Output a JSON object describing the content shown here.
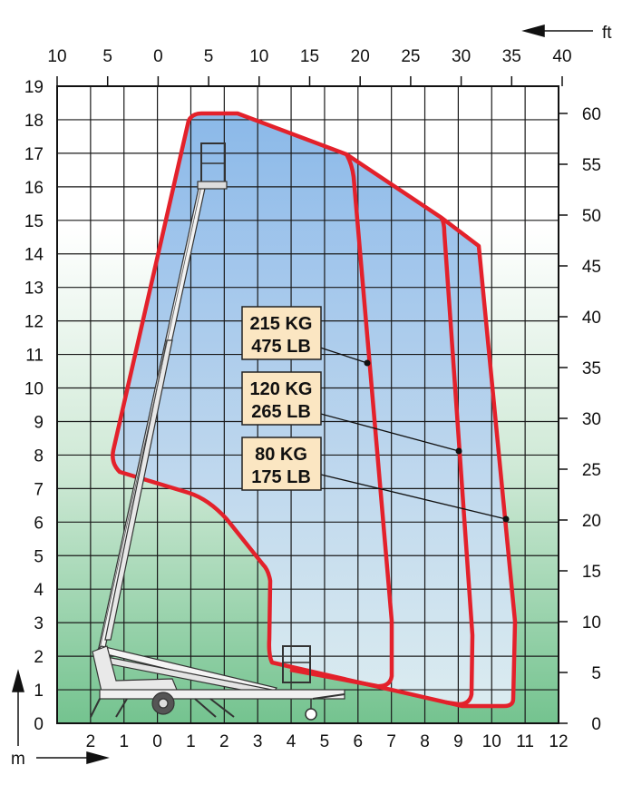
{
  "units": {
    "feet": "ft",
    "meters": "m"
  },
  "top_ft_labels": [
    "10",
    "5",
    "0",
    "5",
    "10",
    "15",
    "20",
    "25",
    "30",
    "35",
    "40"
  ],
  "left_m_labels": [
    "19",
    "18",
    "17",
    "16",
    "15",
    "14",
    "13",
    "12",
    "11",
    "10",
    "9",
    "8",
    "7",
    "6",
    "5",
    "4",
    "3",
    "2",
    "1",
    "0"
  ],
  "right_ft_labels": [
    "60",
    "55",
    "50",
    "45",
    "40",
    "35",
    "30",
    "25",
    "20",
    "15",
    "10",
    "5",
    "0"
  ],
  "bottom_m_labels": [
    "2",
    "1",
    "0",
    "1",
    "2",
    "3",
    "4",
    "5",
    "6",
    "7",
    "8",
    "9",
    "10",
    "11",
    "12"
  ],
  "load_zones": [
    {
      "kg": "215 KG",
      "lb": "475 LB"
    },
    {
      "kg": "120 KG",
      "lb": "265 LB"
    },
    {
      "kg": "80 KG",
      "lb": "175 LB"
    }
  ],
  "colors": {
    "envelope": "#e3212b",
    "zone_top": "#7fb2e6",
    "ground_green": "#7cc996",
    "grid": "#1a1a1a"
  }
}
